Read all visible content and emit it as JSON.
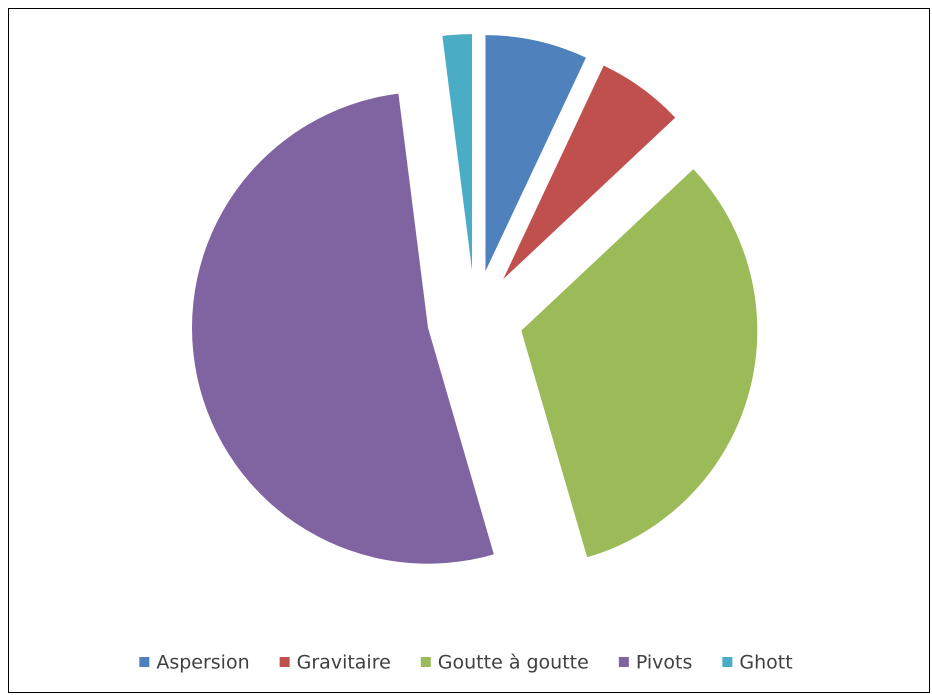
{
  "chart_data": {
    "type": "pie",
    "categories": [
      "Aspersion",
      "Gravitaire",
      "Goutte à goutte",
      "Pivots",
      "Ghott"
    ],
    "values": [
      7,
      6,
      32.5,
      52.5,
      2
    ],
    "colors": [
      "#4f81bd",
      "#c0504d",
      "#9bbb59",
      "#8064a2",
      "#4bacc6"
    ],
    "legend": "bottom"
  }
}
